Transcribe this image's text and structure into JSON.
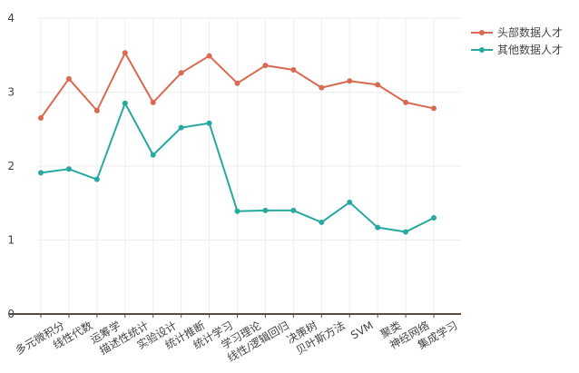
{
  "chart_data": {
    "type": "line",
    "title": "",
    "xlabel": "",
    "ylabel": "",
    "ylim": [
      0,
      4
    ],
    "yticks": [
      0,
      1,
      2,
      3,
      4
    ],
    "grid": true,
    "legend_position": "top-right",
    "categories": [
      "多元微积分",
      "线性代数",
      "运筹学",
      "描述性统计",
      "实验设计",
      "统计推断",
      "统计学习",
      "学习理论",
      "线性/逻辑回归",
      "决策树",
      "贝叶斯方法",
      "SVM",
      "聚类",
      "神经网络",
      "集成学习"
    ],
    "series": [
      {
        "name": "头部数据人才",
        "color": "#d9694f",
        "values": [
          2.65,
          3.18,
          2.75,
          3.53,
          2.86,
          3.26,
          3.49,
          3.12,
          3.36,
          3.3,
          3.06,
          3.15,
          3.1,
          2.86,
          2.78
        ]
      },
      {
        "name": "其他数据人才",
        "color": "#28a9a0",
        "values": [
          1.91,
          1.96,
          1.82,
          2.85,
          2.15,
          2.52,
          2.58,
          1.39,
          1.4,
          1.4,
          1.24,
          1.51,
          1.17,
          1.11,
          1.3
        ]
      }
    ]
  }
}
